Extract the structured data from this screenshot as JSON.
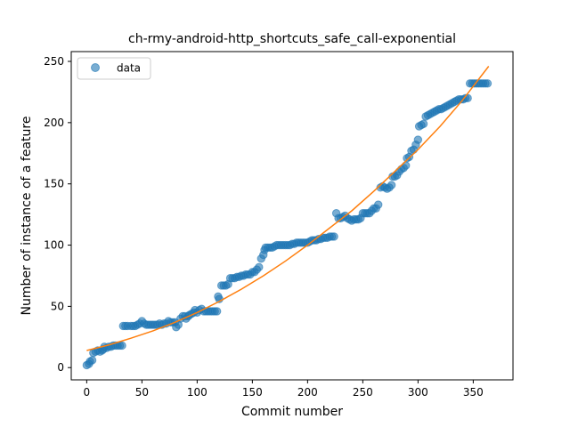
{
  "chart_data": {
    "type": "scatter",
    "title": "ch-rmy-android-http_shortcuts_safe_call-exponential",
    "xlabel": "Commit number",
    "ylabel": "Number of instance of a feature",
    "xlim": [
      -14,
      386
    ],
    "ylim": [
      -10,
      258
    ],
    "xticks": [
      0,
      50,
      100,
      150,
      200,
      250,
      300,
      350
    ],
    "yticks": [
      0,
      50,
      100,
      150,
      200,
      250
    ],
    "grid": false,
    "legend": {
      "position": "upper-left",
      "entries": [
        "data"
      ]
    },
    "colors": {
      "data": "#1f77b4",
      "fit": "#ff7f0e"
    },
    "series": [
      {
        "name": "data",
        "kind": "scatter",
        "points": [
          [
            0,
            2
          ],
          [
            2,
            3
          ],
          [
            3,
            5
          ],
          [
            5,
            6
          ],
          [
            6,
            12
          ],
          [
            8,
            13
          ],
          [
            10,
            14
          ],
          [
            12,
            13
          ],
          [
            14,
            14
          ],
          [
            15,
            15
          ],
          [
            16,
            17
          ],
          [
            18,
            16
          ],
          [
            20,
            17
          ],
          [
            22,
            17
          ],
          [
            24,
            18
          ],
          [
            26,
            18
          ],
          [
            28,
            18
          ],
          [
            30,
            18
          ],
          [
            32,
            18
          ],
          [
            33,
            34
          ],
          [
            35,
            34
          ],
          [
            37,
            34
          ],
          [
            40,
            34
          ],
          [
            42,
            34
          ],
          [
            44,
            34
          ],
          [
            46,
            35
          ],
          [
            48,
            36
          ],
          [
            50,
            38
          ],
          [
            52,
            36
          ],
          [
            54,
            35
          ],
          [
            56,
            35
          ],
          [
            58,
            35
          ],
          [
            60,
            35
          ],
          [
            62,
            35
          ],
          [
            64,
            35
          ],
          [
            66,
            36
          ],
          [
            68,
            35
          ],
          [
            70,
            36
          ],
          [
            72,
            36
          ],
          [
            74,
            38
          ],
          [
            76,
            37
          ],
          [
            78,
            37
          ],
          [
            80,
            37
          ],
          [
            81,
            33
          ],
          [
            83,
            35
          ],
          [
            85,
            40
          ],
          [
            87,
            42
          ],
          [
            89,
            42
          ],
          [
            90,
            40
          ],
          [
            92,
            42
          ],
          [
            93,
            43
          ],
          [
            95,
            44
          ],
          [
            97,
            45
          ],
          [
            98,
            47
          ],
          [
            100,
            45
          ],
          [
            102,
            47
          ],
          [
            104,
            48
          ],
          [
            106,
            46
          ],
          [
            108,
            46
          ],
          [
            110,
            46
          ],
          [
            112,
            46
          ],
          [
            114,
            46
          ],
          [
            116,
            46
          ],
          [
            118,
            46
          ],
          [
            119,
            58
          ],
          [
            120,
            56
          ],
          [
            122,
            67
          ],
          [
            124,
            67
          ],
          [
            126,
            67
          ],
          [
            128,
            68
          ],
          [
            130,
            73
          ],
          [
            132,
            73
          ],
          [
            134,
            73
          ],
          [
            136,
            74
          ],
          [
            138,
            74
          ],
          [
            140,
            75
          ],
          [
            142,
            75
          ],
          [
            144,
            76
          ],
          [
            146,
            76
          ],
          [
            148,
            76
          ],
          [
            150,
            78
          ],
          [
            152,
            78
          ],
          [
            154,
            80
          ],
          [
            156,
            82
          ],
          [
            158,
            89
          ],
          [
            160,
            92
          ],
          [
            161,
            96
          ],
          [
            162,
            98
          ],
          [
            164,
            98
          ],
          [
            166,
            98
          ],
          [
            168,
            98
          ],
          [
            170,
            99
          ],
          [
            172,
            100
          ],
          [
            174,
            100
          ],
          [
            176,
            100
          ],
          [
            178,
            100
          ],
          [
            180,
            100
          ],
          [
            182,
            100
          ],
          [
            184,
            100
          ],
          [
            186,
            101
          ],
          [
            188,
            101
          ],
          [
            190,
            102
          ],
          [
            192,
            102
          ],
          [
            194,
            102
          ],
          [
            196,
            102
          ],
          [
            198,
            102
          ],
          [
            200,
            102
          ],
          [
            202,
            103
          ],
          [
            204,
            104
          ],
          [
            206,
            104
          ],
          [
            208,
            104
          ],
          [
            210,
            105
          ],
          [
            212,
            105
          ],
          [
            214,
            106
          ],
          [
            216,
            106
          ],
          [
            218,
            106
          ],
          [
            220,
            107
          ],
          [
            222,
            107
          ],
          [
            224,
            107
          ],
          [
            226,
            126
          ],
          [
            228,
            122
          ],
          [
            230,
            122
          ],
          [
            232,
            123
          ],
          [
            234,
            124
          ],
          [
            236,
            122
          ],
          [
            238,
            121
          ],
          [
            240,
            120
          ],
          [
            242,
            121
          ],
          [
            244,
            121
          ],
          [
            246,
            121
          ],
          [
            248,
            122
          ],
          [
            250,
            126
          ],
          [
            252,
            126
          ],
          [
            254,
            126
          ],
          [
            256,
            126
          ],
          [
            258,
            128
          ],
          [
            260,
            130
          ],
          [
            262,
            130
          ],
          [
            264,
            133
          ],
          [
            266,
            147
          ],
          [
            268,
            148
          ],
          [
            270,
            147
          ],
          [
            272,
            146
          ],
          [
            274,
            147
          ],
          [
            276,
            149
          ],
          [
            277,
            156
          ],
          [
            279,
            156
          ],
          [
            281,
            157
          ],
          [
            283,
            160
          ],
          [
            285,
            162
          ],
          [
            287,
            163
          ],
          [
            289,
            165
          ],
          [
            290,
            171
          ],
          [
            292,
            172
          ],
          [
            294,
            177
          ],
          [
            296,
            178
          ],
          [
            298,
            182
          ],
          [
            300,
            186
          ],
          [
            301,
            197
          ],
          [
            303,
            198
          ],
          [
            305,
            199
          ],
          [
            307,
            205
          ],
          [
            309,
            206
          ],
          [
            311,
            207
          ],
          [
            313,
            208
          ],
          [
            315,
            209
          ],
          [
            317,
            210
          ],
          [
            319,
            211
          ],
          [
            321,
            211
          ],
          [
            323,
            212
          ],
          [
            325,
            213
          ],
          [
            327,
            214
          ],
          [
            329,
            215
          ],
          [
            331,
            216
          ],
          [
            333,
            217
          ],
          [
            335,
            218
          ],
          [
            337,
            219
          ],
          [
            339,
            219
          ],
          [
            341,
            219
          ],
          [
            343,
            220
          ],
          [
            345,
            220
          ],
          [
            347,
            232
          ],
          [
            349,
            232
          ],
          [
            351,
            232
          ],
          [
            353,
            232
          ],
          [
            355,
            232
          ],
          [
            357,
            232
          ],
          [
            359,
            232
          ],
          [
            361,
            232
          ],
          [
            363,
            232
          ]
        ]
      },
      {
        "kind": "line",
        "x": [
          0,
          20,
          40,
          60,
          80,
          100,
          120,
          140,
          160,
          180,
          200,
          220,
          240,
          260,
          280,
          300,
          320,
          340,
          364
        ],
        "y": [
          14,
          18.5,
          24,
          30,
          37,
          45,
          54,
          64,
          75,
          87,
          100,
          114,
          128,
          144,
          161,
          178,
          197,
          218,
          246
        ]
      }
    ]
  }
}
